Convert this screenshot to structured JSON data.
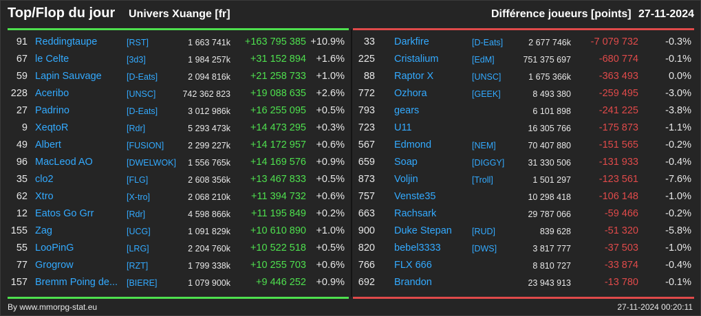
{
  "header": {
    "title": "Top/Flop du jour",
    "universe": "Univers Xuange [fr]",
    "metric": "Différence joueurs [points]",
    "date": "27-11-2024"
  },
  "colors": {
    "positive": "#4ee04e",
    "negative": "#e04a4a",
    "link": "#33aaff"
  },
  "top": [
    {
      "rank": "91",
      "name": "Reddingtaupe",
      "tag": "[RST]",
      "score": "1 663 741k",
      "diff": "+163 795 385",
      "pct": "+10.9%"
    },
    {
      "rank": "67",
      "name": "le Celte",
      "tag": "[3d3]",
      "score": "1 984 257k",
      "diff": "+31 152 894",
      "pct": "+1.6%"
    },
    {
      "rank": "59",
      "name": "Lapin Sauvage",
      "tag": "[D-Eats]",
      "score": "2 094 816k",
      "diff": "+21 258 733",
      "pct": "+1.0%"
    },
    {
      "rank": "228",
      "name": "Aceribo",
      "tag": "[UNSC]",
      "score": "742 362 823",
      "diff": "+19 088 635",
      "pct": "+2.6%"
    },
    {
      "rank": "27",
      "name": "Padrino",
      "tag": "[D-Eats]",
      "score": "3 012 986k",
      "diff": "+16 255 095",
      "pct": "+0.5%"
    },
    {
      "rank": "9",
      "name": "XeqtoR",
      "tag": "[Rdr]",
      "score": "5 293 473k",
      "diff": "+14 473 295",
      "pct": "+0.3%"
    },
    {
      "rank": "49",
      "name": "Albert",
      "tag": "[FUSION]",
      "score": "2 299 227k",
      "diff": "+14 172 957",
      "pct": "+0.6%"
    },
    {
      "rank": "96",
      "name": "MacLeod AO",
      "tag": "[DWELWOK]",
      "score": "1 556 765k",
      "diff": "+14 169 576",
      "pct": "+0.9%"
    },
    {
      "rank": "35",
      "name": "clo2",
      "tag": "[FLG]",
      "score": "2 608 356k",
      "diff": "+13 467 833",
      "pct": "+0.5%"
    },
    {
      "rank": "62",
      "name": "Xtro",
      "tag": "[X-tro]",
      "score": "2 068 210k",
      "diff": "+11 394 732",
      "pct": "+0.6%"
    },
    {
      "rank": "12",
      "name": "Eatos Go Grr",
      "tag": "[Rdr]",
      "score": "4 598 866k",
      "diff": "+11 195 849",
      "pct": "+0.2%"
    },
    {
      "rank": "155",
      "name": "Zag",
      "tag": "[UCG]",
      "score": "1 091 829k",
      "diff": "+10 610 890",
      "pct": "+1.0%"
    },
    {
      "rank": "55",
      "name": "LooPinG",
      "tag": "[LRG]",
      "score": "2 204 760k",
      "diff": "+10 522 518",
      "pct": "+0.5%"
    },
    {
      "rank": "77",
      "name": "Grogrow",
      "tag": "[RZT]",
      "score": "1 799 338k",
      "diff": "+10 255 703",
      "pct": "+0.6%"
    },
    {
      "rank": "157",
      "name": "Bremm Poing de...",
      "tag": "[BIERE]",
      "score": "1 079 900k",
      "diff": "+9 446 252",
      "pct": "+0.9%"
    }
  ],
  "flop": [
    {
      "rank": "33",
      "name": "Darkfire",
      "tag": "[D-Eats]",
      "score": "2 677 746k",
      "diff": "-7 079 732",
      "pct": "-0.3%"
    },
    {
      "rank": "225",
      "name": "Cristalium",
      "tag": "[EdM]",
      "score": "751 375 697",
      "diff": "-680 774",
      "pct": "-0.1%"
    },
    {
      "rank": "88",
      "name": "Raptor X",
      "tag": "[UNSC]",
      "score": "1 675 366k",
      "diff": "-363 493",
      "pct": "0.0%"
    },
    {
      "rank": "772",
      "name": "Ozhora",
      "tag": "[GEEK]",
      "score": "8 493 380",
      "diff": "-259 495",
      "pct": "-3.0%"
    },
    {
      "rank": "793",
      "name": "gears",
      "tag": "",
      "score": "6 101 898",
      "diff": "-241 225",
      "pct": "-3.8%"
    },
    {
      "rank": "723",
      "name": "U11",
      "tag": "",
      "score": "16 305 766",
      "diff": "-175 873",
      "pct": "-1.1%"
    },
    {
      "rank": "567",
      "name": "Edmond",
      "tag": "[NEM]",
      "score": "70 407 880",
      "diff": "-151 565",
      "pct": "-0.2%"
    },
    {
      "rank": "659",
      "name": "Soap",
      "tag": "[DIGGY]",
      "score": "31 330 506",
      "diff": "-131 933",
      "pct": "-0.4%"
    },
    {
      "rank": "873",
      "name": "Voljin",
      "tag": "[Troll]",
      "score": "1 501 297",
      "diff": "-123 561",
      "pct": "-7.6%"
    },
    {
      "rank": "757",
      "name": "Venste35",
      "tag": "",
      "score": "10 298 418",
      "diff": "-106 148",
      "pct": "-1.0%"
    },
    {
      "rank": "663",
      "name": "Rachsark",
      "tag": "",
      "score": "29 787 066",
      "diff": "-59 466",
      "pct": "-0.2%"
    },
    {
      "rank": "900",
      "name": "Duke Stepan",
      "tag": "[RUD]",
      "score": "839 628",
      "diff": "-51 320",
      "pct": "-5.8%"
    },
    {
      "rank": "820",
      "name": "bebel3333",
      "tag": "[DWS]",
      "score": "3 817 777",
      "diff": "-37 503",
      "pct": "-1.0%"
    },
    {
      "rank": "766",
      "name": "FLX 666",
      "tag": "",
      "score": "8 810 727",
      "diff": "-33 874",
      "pct": "-0.4%"
    },
    {
      "rank": "692",
      "name": "Brandon",
      "tag": "",
      "score": "23 943 913",
      "diff": "-13 780",
      "pct": "-0.1%"
    }
  ],
  "footer": {
    "credit": "By www.mmorpg-stat.eu",
    "timestamp": "27-11-2024 00:20:11"
  }
}
